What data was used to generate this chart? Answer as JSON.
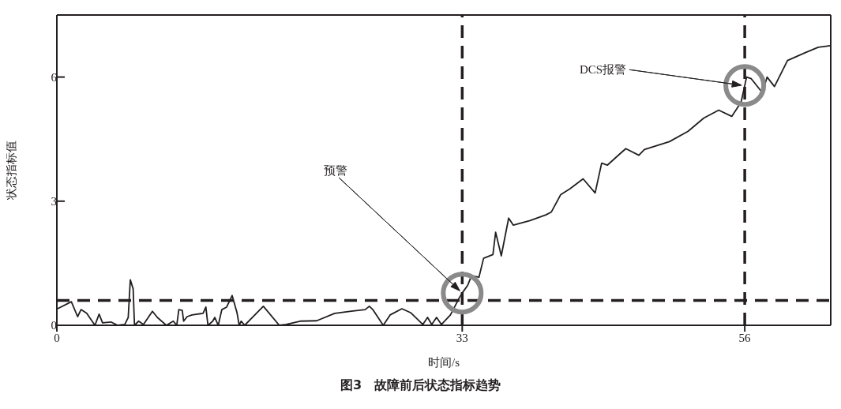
{
  "chart_data": {
    "type": "line",
    "title": "图3　故障前后状态指标趋势",
    "xlabel": "时间/s",
    "ylabel": "状态指标值",
    "x": [
      0.06,
      1.18,
      1.69,
      1.97,
      2.43,
      3.1,
      3.44,
      3.72,
      4.4,
      4.96,
      5.53,
      5.81,
      5.98,
      6.21,
      6.32,
      6.66,
      7.05,
      7.78,
      8.18,
      8.91,
      9.48,
      9.76,
      9.93,
      10.21,
      10.32,
      10.61,
      11,
      11.9,
      12.13,
      12.3,
      12.69,
      12.86,
      13.14,
      13.43,
      13.82,
      14.27,
      14.67,
      14.84,
      15.01,
      15.29,
      16.81,
      18.11,
      18.67,
      19.8,
      21.15,
      22.62,
      23.97,
      25.1,
      25.44,
      25.72,
      26.57,
      27.13,
      28.09,
      28.83,
      29.79,
      30.18,
      30.52,
      30.91,
      31.31,
      32.04,
      32.77,
      33,
      33.45,
      33.76,
      34.36,
      34.74,
      35.5,
      35.72,
      36.18,
      36.78,
      37.16,
      38.52,
      39.81,
      40.26,
      41.02,
      41.78,
      42.84,
      43.82,
      44.35,
      44.81,
      45.86,
      46.32,
      47.38,
      47.83,
      49.87,
      51.39,
      52.67,
      53.88,
      54.94,
      55.7,
      56.15,
      56.53,
      57.44,
      57.82,
      58.42,
      59.48,
      60.46,
      61.98,
      62.96
    ],
    "series": [
      {
        "color": "#231f20",
        "values": [
          0.4,
          0.57,
          0.21,
          0.38,
          0.29,
          0,
          0.27,
          0.06,
          0.08,
          0,
          0.02,
          0.19,
          1.1,
          0.88,
          0,
          0.1,
          0.02,
          0.34,
          0.19,
          0,
          0.1,
          0,
          0.38,
          0.36,
          0.1,
          0.21,
          0.25,
          0.29,
          0.44,
          0,
          0.1,
          0.19,
          0,
          0.38,
          0.44,
          0.72,
          0.3,
          0,
          0.1,
          0,
          0.46,
          0,
          0.02,
          0.1,
          0.11,
          0.29,
          0.34,
          0.38,
          0.46,
          0.38,
          0,
          0.25,
          0.4,
          0.3,
          0.02,
          0.19,
          0.02,
          0.19,
          0.02,
          0.25,
          0.67,
          0.78,
          0.97,
          1.2,
          1.16,
          1.62,
          1.71,
          2.25,
          1.68,
          2.59,
          2.42,
          2.53,
          2.67,
          2.74,
          3.16,
          3.3,
          3.54,
          3.2,
          3.92,
          3.87,
          4.15,
          4.27,
          4.11,
          4.25,
          4.44,
          4.69,
          5.01,
          5.2,
          5.05,
          5.39,
          6,
          5.96,
          5.62,
          6,
          5.77,
          6.4,
          6.53,
          6.72,
          6.76
        ]
      }
    ],
    "xlim": [
      0,
      63
    ],
    "xticks": [
      0,
      33,
      56
    ],
    "ylim": [
      0,
      7.5
    ],
    "yticks": [
      0,
      3,
      6
    ],
    "grid": false,
    "legend": false,
    "marker": "none",
    "line_style": "solid",
    "ref_lines": [
      {
        "axis": "y",
        "value": 0.6,
        "line_style": "dashed",
        "color": "#231f20"
      },
      {
        "axis": "x",
        "value": 33,
        "line_style": "dashed",
        "color": "#231f20"
      },
      {
        "axis": "x",
        "value": 56,
        "line_style": "dashed",
        "color": "#231f20"
      }
    ],
    "annotations": [
      "预警",
      "DCS报警"
    ]
  }
}
